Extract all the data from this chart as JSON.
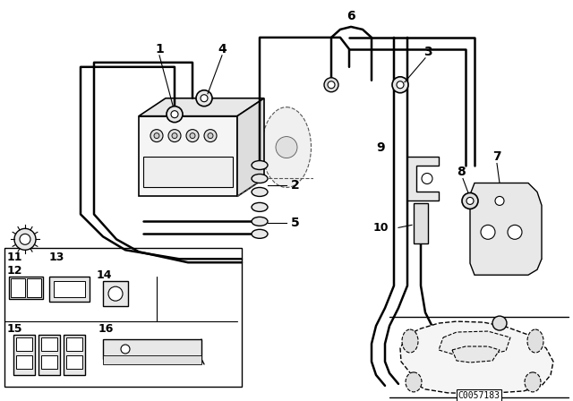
{
  "bg_color": "#ffffff",
  "line_color": "#000000",
  "fig_width": 6.4,
  "fig_height": 4.48,
  "dpi": 100,
  "diagram_code": "C0057183"
}
